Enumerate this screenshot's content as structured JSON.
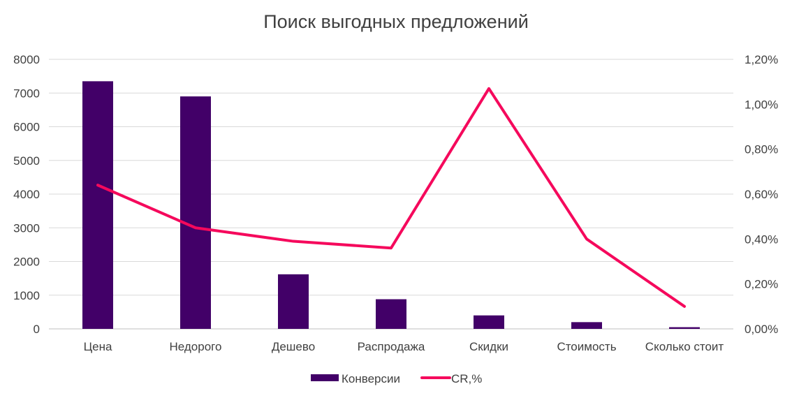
{
  "chart_data": {
    "type": "bar",
    "title": "Поиск выгодных предложений",
    "categories": [
      "Цена",
      "Недорого",
      "Дешево",
      "Распродажа",
      "Скидки",
      "Стоимость",
      "Сколько стоит"
    ],
    "series": [
      {
        "name": "Конверсии",
        "type": "bar",
        "axis": "left",
        "color": "#420068",
        "values": [
          7350,
          6900,
          1620,
          880,
          400,
          200,
          50
        ]
      },
      {
        "name": "CR,%",
        "type": "line",
        "axis": "right",
        "color": "#f5095c",
        "values": [
          0.64,
          0.45,
          0.39,
          0.36,
          1.07,
          0.4,
          0.1
        ]
      }
    ],
    "y_left": {
      "min": 0,
      "max": 8000,
      "step": 1000,
      "ticks": [
        "0",
        "1000",
        "2000",
        "3000",
        "4000",
        "5000",
        "6000",
        "7000",
        "8000"
      ]
    },
    "y_right": {
      "min": 0,
      "max": 1.2,
      "step": 0.2,
      "ticks": [
        "0,00%",
        "0,20%",
        "0,40%",
        "0,60%",
        "0,80%",
        "1,00%",
        "1,20%"
      ]
    },
    "grid": true,
    "legend_position": "bottom"
  }
}
